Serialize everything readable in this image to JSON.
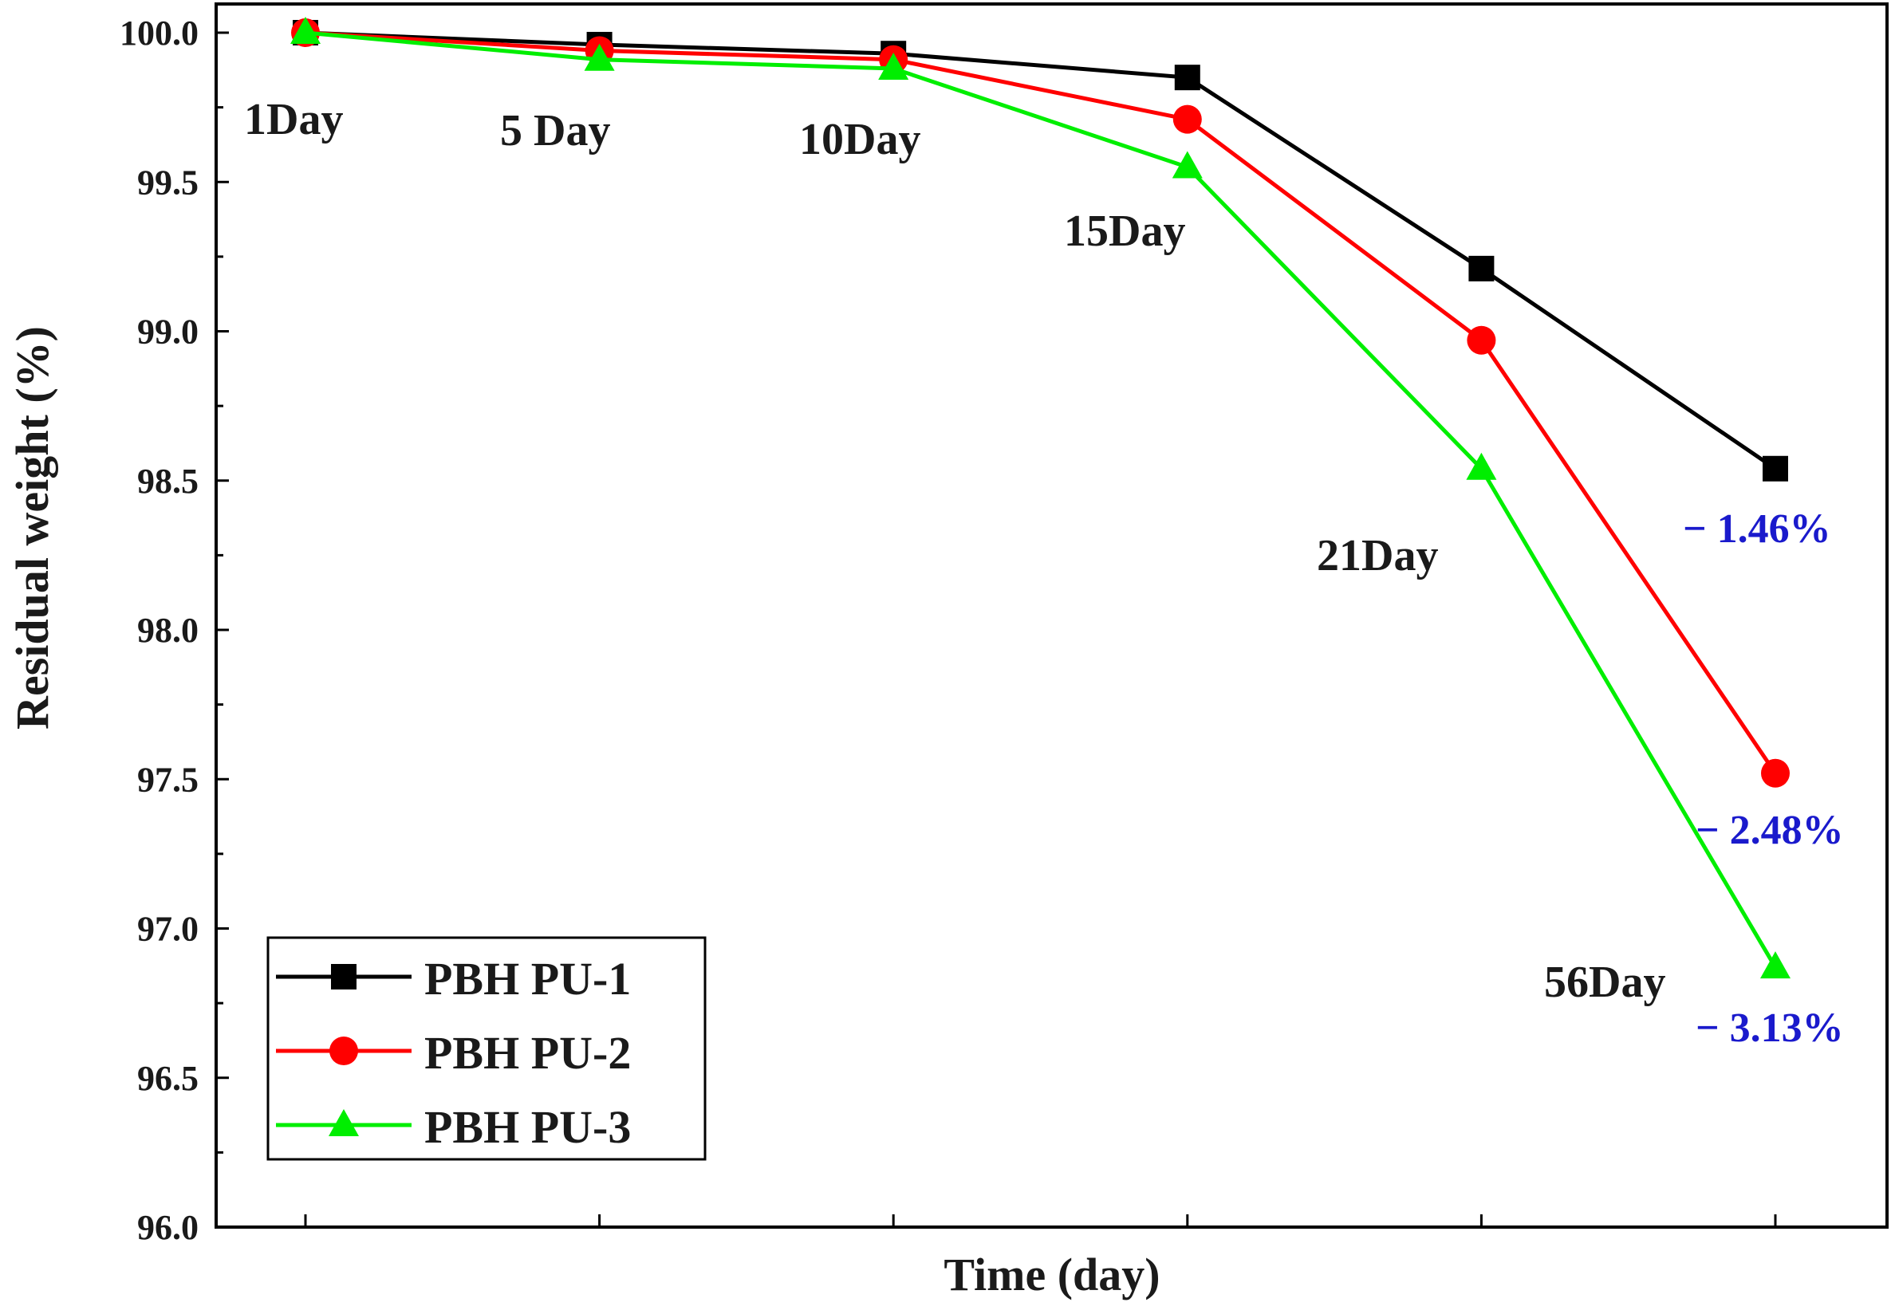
{
  "chart_data": {
    "type": "line",
    "title": "",
    "xlabel": "Time (day)",
    "ylabel": "Residual weight (%)",
    "ylim": [
      96.0,
      100.0
    ],
    "yticks": [
      "96.0",
      "96.5",
      "97.0",
      "97.5",
      "98.0",
      "98.5",
      "99.0",
      "99.5",
      "100.0"
    ],
    "categories": [
      "1Day",
      "5 Day",
      "10Day",
      "15Day",
      "21Day",
      "56Day"
    ],
    "series": [
      {
        "name": "PBH PU-1",
        "color": "#000000",
        "marker": "square",
        "values": [
          100.0,
          99.96,
          99.93,
          99.85,
          99.21,
          98.54
        ],
        "loss_label": "− 1.46%"
      },
      {
        "name": "PBH PU-2",
        "color": "#ff0000",
        "marker": "circle",
        "values": [
          100.0,
          99.94,
          99.91,
          99.71,
          98.97,
          97.52
        ],
        "loss_label": "− 2.48%"
      },
      {
        "name": "PBH PU-3",
        "color": "#00ee00",
        "marker": "triangle",
        "values": [
          100.0,
          99.91,
          99.88,
          99.55,
          98.54,
          96.87
        ],
        "loss_label": "− 3.13%"
      }
    ],
    "annotation_color": "#1a1acc",
    "legend_position": "bottom-left",
    "grid": false
  }
}
